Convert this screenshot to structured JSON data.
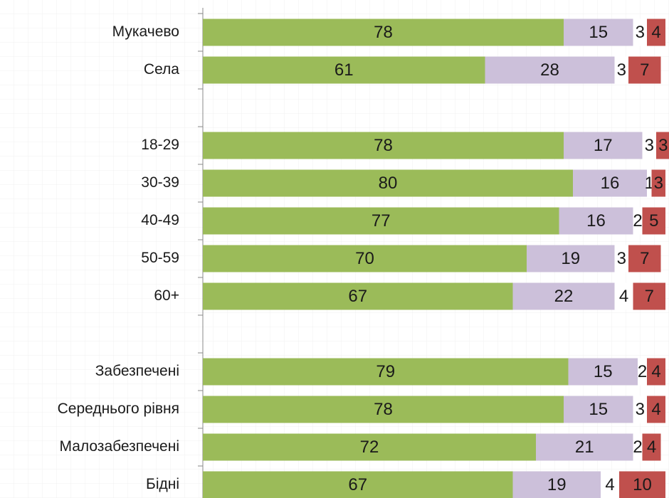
{
  "chart_data": {
    "type": "stacked-bar-horizontal",
    "categories": [
      "Мукачево",
      "Села",
      null,
      "18-29",
      "30-39",
      "40-49",
      "50-59",
      "60+",
      null,
      "Забезпечені",
      "Середнього рівня",
      "Малозабезпечені",
      "Бідні"
    ],
    "series": [
      {
        "color": "#9bbb59",
        "values": [
          78,
          61,
          null,
          78,
          80,
          77,
          70,
          67,
          null,
          79,
          78,
          72,
          67
        ]
      },
      {
        "color": "#ccc0da",
        "values": [
          15,
          28,
          null,
          17,
          16,
          16,
          19,
          22,
          null,
          15,
          15,
          21,
          19
        ]
      },
      {
        "color": "#ffffff",
        "values": [
          3,
          3,
          null,
          3,
          1,
          2,
          3,
          4,
          null,
          2,
          3,
          2,
          4
        ]
      },
      {
        "color": "#c0504d",
        "values": [
          4,
          7,
          null,
          3,
          3,
          5,
          7,
          7,
          null,
          4,
          4,
          4,
          10
        ]
      }
    ],
    "xlim": [
      0,
      100
    ]
  }
}
